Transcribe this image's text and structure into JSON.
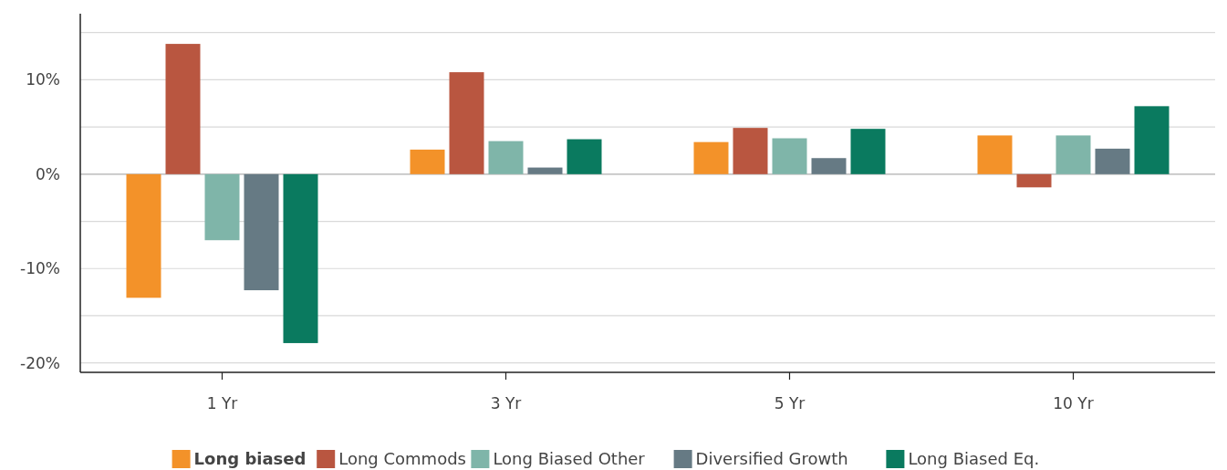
{
  "chart_data": {
    "type": "bar",
    "categories": [
      "1 Yr",
      "3 Yr",
      "5 Yr",
      "10 Yr"
    ],
    "series": [
      {
        "name": "Long biased",
        "color": "#f39229",
        "values": [
          -13.1,
          2.6,
          3.4,
          4.1
        ]
      },
      {
        "name": "Long Commods",
        "color": "#b95640",
        "values": [
          13.8,
          10.8,
          4.9,
          -1.4
        ]
      },
      {
        "name": "Long Biased Other",
        "color": "#7fb5a9",
        "values": [
          -7.0,
          3.5,
          3.8,
          4.1
        ]
      },
      {
        "name": "Diversified Growth",
        "color": "#667a84",
        "values": [
          -12.3,
          0.7,
          1.7,
          2.7
        ]
      },
      {
        "name": "Long Biased Eq.",
        "color": "#0a7a5f",
        "values": [
          -17.9,
          3.7,
          4.8,
          7.2
        ]
      }
    ],
    "ylim": [
      -21,
      17
    ],
    "yticks": [
      {
        "value": -20,
        "label": "-20%"
      },
      {
        "value": -15,
        "label": null
      },
      {
        "value": -10,
        "label": "-10%"
      },
      {
        "value": -5,
        "label": null
      },
      {
        "value": 0,
        "label": "0%"
      },
      {
        "value": 5,
        "label": null
      },
      {
        "value": 10,
        "label": "10%"
      },
      {
        "value": 15,
        "label": null
      }
    ],
    "grid": "y",
    "legend": "bottom"
  }
}
